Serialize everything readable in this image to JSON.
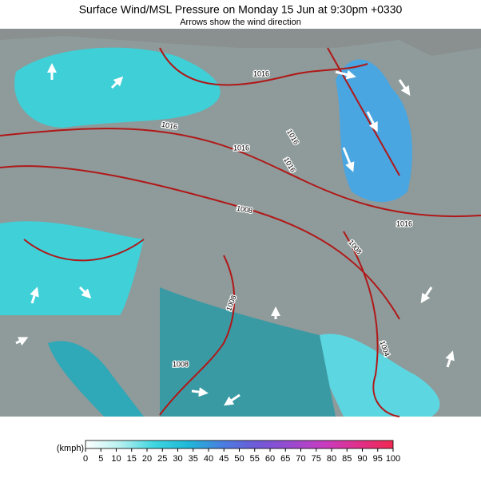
{
  "header": {
    "title": "Surface Wind/MSL Pressure on Monday 15 Jun at 9:30pm +0330",
    "subtitle": "Arrows show the wind direction"
  },
  "map": {
    "isobar_labels": [
      "1016",
      "1016",
      "1016",
      "1016",
      "1016",
      "1008",
      "1008",
      "1008",
      "1008",
      "1004",
      "1016"
    ]
  },
  "legend": {
    "unit": "(kmph)",
    "ticks": [
      0,
      5,
      10,
      15,
      20,
      25,
      30,
      35,
      40,
      45,
      50,
      55,
      60,
      65,
      70,
      75,
      80,
      85,
      90,
      95,
      100
    ],
    "colors": [
      "#ffffff",
      "#b8f0f0",
      "#3fd6e0",
      "#1fb8d8",
      "#4a7ee0",
      "#6e5ad8",
      "#9a4ad0",
      "#c83cc0",
      "#e0308a",
      "#f02850"
    ]
  }
}
